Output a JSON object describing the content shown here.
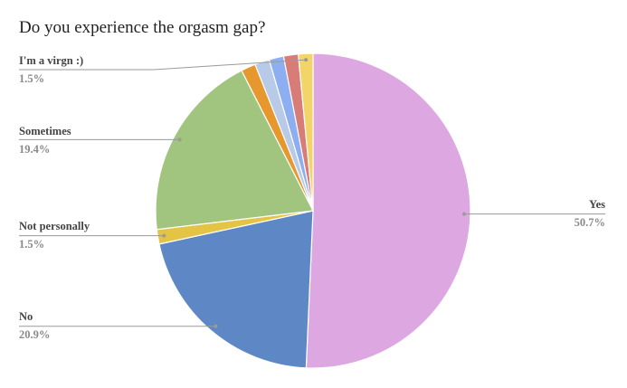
{
  "chart_data": {
    "type": "pie",
    "title": "Do you experience the orgasm gap?",
    "slices": [
      {
        "label": "Yes",
        "value": 50.7,
        "value_label": "50.7%",
        "color": "#dda7e2",
        "show_label": true
      },
      {
        "label": "No",
        "value": 20.9,
        "value_label": "20.9%",
        "color": "#5d87c5",
        "show_label": true
      },
      {
        "label": "Not personally",
        "value": 1.5,
        "value_label": "1.5%",
        "color": "#e3c445",
        "show_label": true
      },
      {
        "label": "Sometimes",
        "value": 19.4,
        "value_label": "19.4%",
        "color": "#a1c47f",
        "show_label": true
      },
      {
        "label": "",
        "value": 1.5,
        "value_label": "",
        "color": "#e6972e",
        "show_label": false
      },
      {
        "label": "",
        "value": 1.5,
        "value_label": "",
        "color": "#b7cbe9",
        "show_label": false
      },
      {
        "label": "",
        "value": 1.5,
        "value_label": "",
        "color": "#8daef0",
        "show_label": false
      },
      {
        "label": "",
        "value": 1.5,
        "value_label": "",
        "color": "#d87c78",
        "show_label": false
      },
      {
        "label": "I'm a virgn :)",
        "value": 1.5,
        "value_label": "1.5%",
        "color": "#f3d468",
        "show_label": true
      }
    ],
    "legend": "none"
  }
}
